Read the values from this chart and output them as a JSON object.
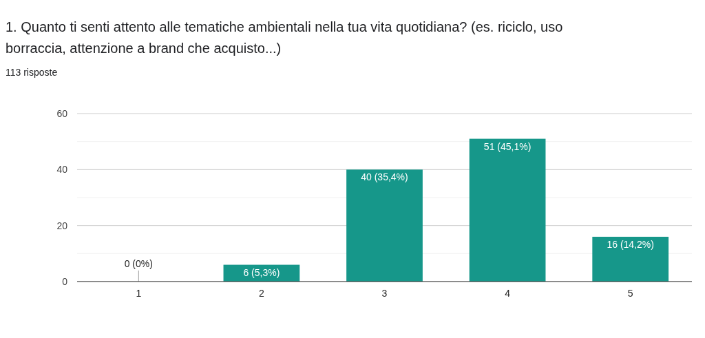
{
  "chart_data": {
    "type": "bar",
    "title": "1. Quanto ti senti attento alle tematiche ambientali nella tua vita quotidiana? (es. riciclo, uso borraccia, attenzione a brand che acquisto...)",
    "subtitle": "113 risposte",
    "categories": [
      "1",
      "2",
      "3",
      "4",
      "5"
    ],
    "values": [
      0,
      6,
      40,
      51,
      16
    ],
    "value_labels": [
      "0 (0%)",
      "6 (5,3%)",
      "40 (35,4%)",
      "51 (45,1%)",
      "16 (14,2%)"
    ],
    "color": "#16978a",
    "ylim": [
      0,
      60
    ],
    "yticks": [
      0,
      {
        "value": 10,
        "label": null
      },
      20,
      {
        "value": 30,
        "label": null
      },
      40,
      {
        "value": 50,
        "label": null
      },
      60
    ],
    "grid": true
  }
}
